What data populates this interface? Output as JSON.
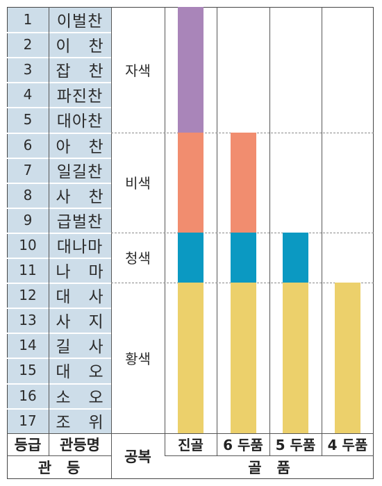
{
  "ranks": [
    {
      "num": "1",
      "name": "이벌찬"
    },
    {
      "num": "2",
      "name": "이   찬"
    },
    {
      "num": "3",
      "name": "잡   찬"
    },
    {
      "num": "4",
      "name": "파진찬"
    },
    {
      "num": "5",
      "name": "대아찬"
    },
    {
      "num": "6",
      "name": "아   찬"
    },
    {
      "num": "7",
      "name": "일길찬"
    },
    {
      "num": "8",
      "name": "사   찬"
    },
    {
      "num": "9",
      "name": "급벌찬"
    },
    {
      "num": "10",
      "name": "대나마"
    },
    {
      "num": "11",
      "name": "나   마"
    },
    {
      "num": "12",
      "name": "대   사"
    },
    {
      "num": "13",
      "name": "사   지"
    },
    {
      "num": "14",
      "name": "길   사"
    },
    {
      "num": "15",
      "name": "대   오"
    },
    {
      "num": "16",
      "name": "소   오"
    },
    {
      "num": "17",
      "name": "조   위"
    }
  ],
  "uniform_colors": [
    {
      "label": "자색",
      "from_rank": 1,
      "to_rank": 5,
      "color": "#a985b9"
    },
    {
      "label": "비색",
      "from_rank": 6,
      "to_rank": 9,
      "color": "#f18d6f"
    },
    {
      "label": "청색",
      "from_rank": 10,
      "to_rank": 11,
      "color": "#0b99c2"
    },
    {
      "label": "황색",
      "from_rank": 12,
      "to_rank": 17,
      "color": "#ecd06b"
    }
  ],
  "bone_ranks": [
    {
      "label": "진골",
      "max_rank": 1
    },
    {
      "label": "6 두품",
      "max_rank": 6
    },
    {
      "label": "5 두품",
      "max_rank": 10
    },
    {
      "label": "4 두품",
      "max_rank": 12
    }
  ],
  "headers": {
    "grade": "등급",
    "rank_name": "관등명",
    "uniform": "공복",
    "rank_group": "관   등",
    "bone_group": "골   품"
  },
  "colors": {
    "left_column_bg": "#cddde9",
    "line": "#555555",
    "dash": "#8a8a8a"
  }
}
